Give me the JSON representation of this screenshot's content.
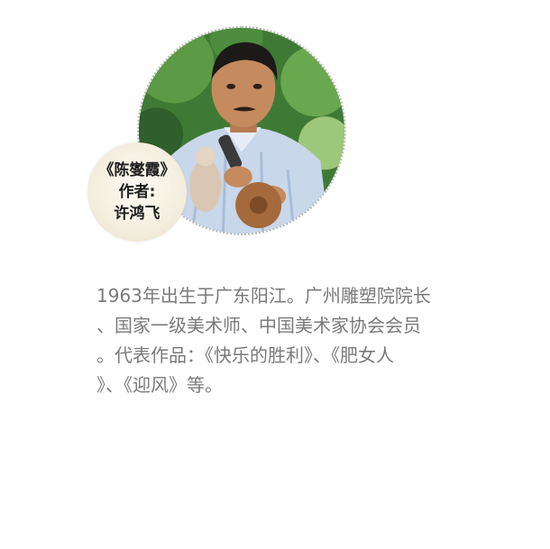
{
  "caption": {
    "line1": "《陈燮霞》",
    "line2": "作者:",
    "line3": "许鸿飞"
  },
  "bio": {
    "lines": [
      "1963年出生于广东阳江。广州雕塑院院长",
      "、国家一级美术师、中国美术家协会会员",
      "。代表作品：《快乐的胜利》、《肥女人",
      "》、《迎风》等。"
    ]
  },
  "colors": {
    "text": "#7a7a7a",
    "caption_text": "#1d1d1d",
    "badge_bg": "#f4eedf",
    "circle_border": "#b9b9b9"
  }
}
